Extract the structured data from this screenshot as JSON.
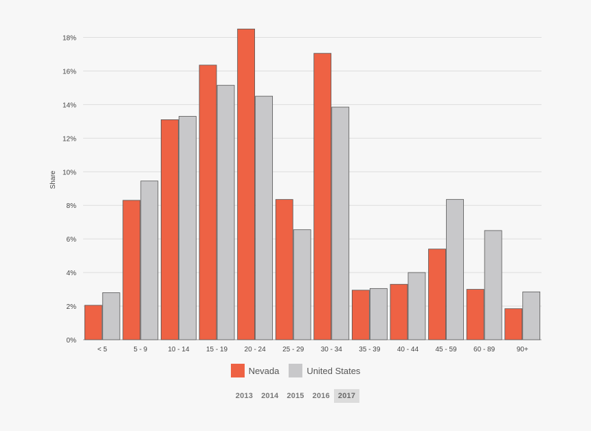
{
  "chart_data": {
    "type": "bar",
    "ylabel": "Share",
    "yticks": [
      "0%",
      "2%",
      "4%",
      "6%",
      "8%",
      "10%",
      "12%",
      "14%",
      "16%",
      "18%"
    ],
    "ylim": [
      0,
      19
    ],
    "categories": [
      "< 5",
      "5 - 9",
      "10 - 14",
      "15 - 19",
      "20 - 24",
      "25 - 29",
      "30 - 34",
      "35 - 39",
      "40 - 44",
      "45 - 59",
      "60 - 89",
      "90+"
    ],
    "series": [
      {
        "name": "Nevada",
        "color": "#ee6244",
        "values": [
          2.05,
          8.3,
          13.1,
          16.35,
          18.5,
          8.35,
          17.05,
          2.95,
          3.3,
          5.4,
          3.0,
          1.85
        ]
      },
      {
        "name": "United States",
        "color": "#c8c8ca",
        "values": [
          2.8,
          9.45,
          13.3,
          15.15,
          14.5,
          6.55,
          13.85,
          3.05,
          4.0,
          8.35,
          6.5,
          2.85
        ]
      }
    ],
    "grid": true,
    "legend": "bottom-center"
  },
  "years": {
    "items": [
      "2013",
      "2014",
      "2015",
      "2016",
      "2017"
    ],
    "selected": "2017"
  }
}
